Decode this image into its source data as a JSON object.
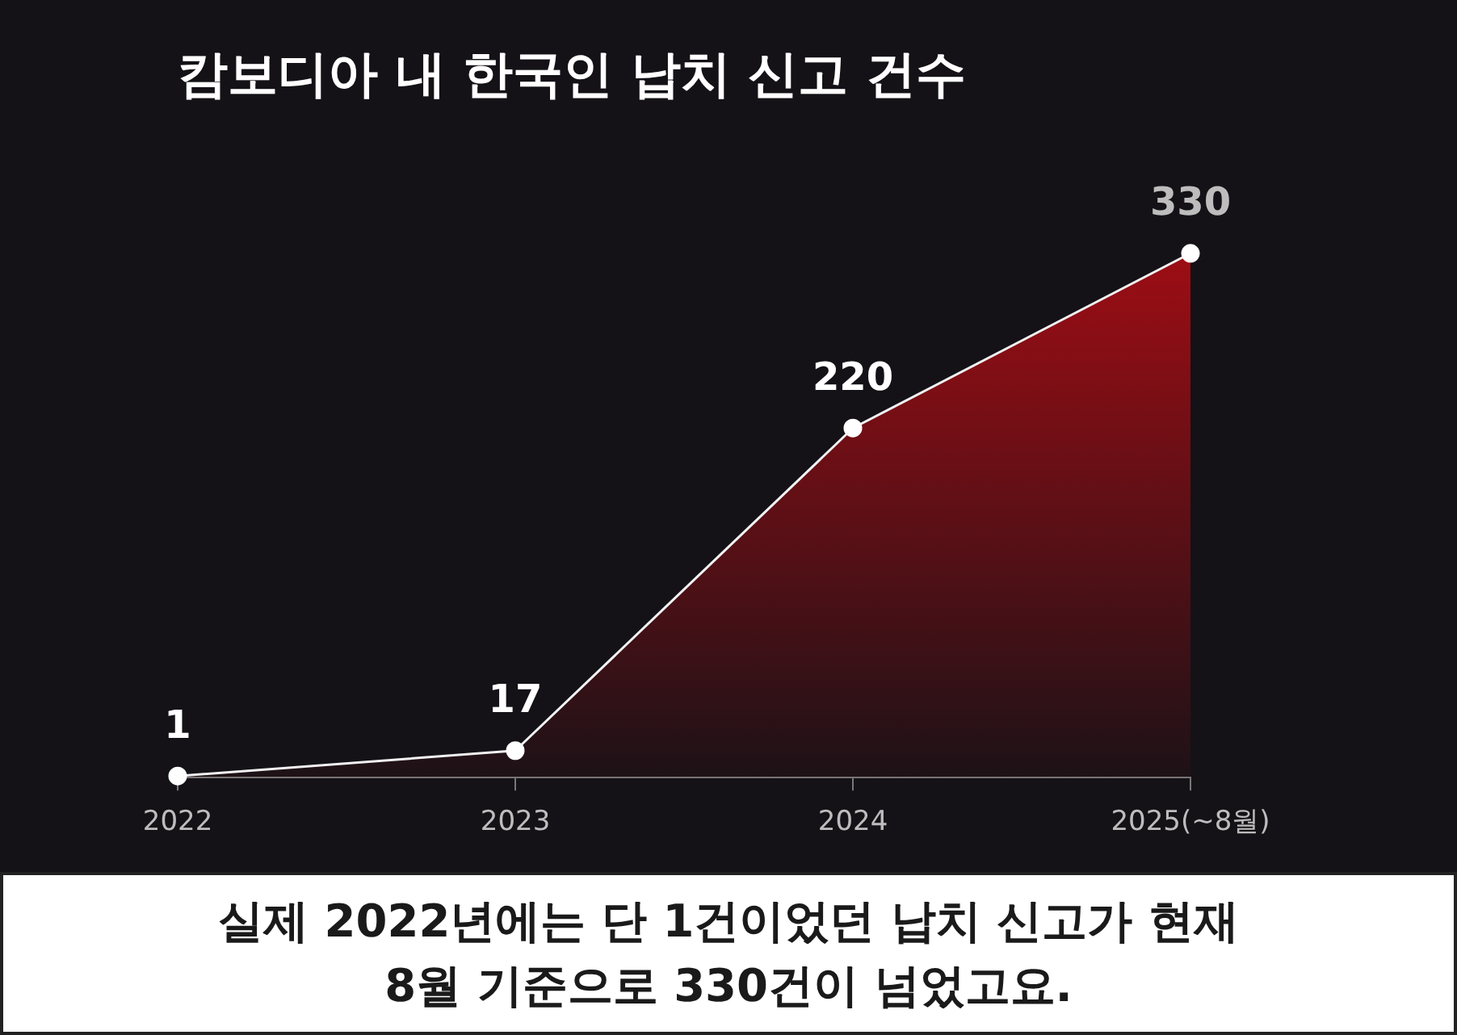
{
  "chart_data": {
    "type": "area",
    "title": "캄보디아 내 한국인 납치 신고 건수",
    "categories": [
      "2022",
      "2023",
      "2024",
      "2025(~8월)"
    ],
    "series": [
      {
        "color": "#a50d14",
        "values": [
          1,
          17,
          220,
          330
        ]
      }
    ],
    "data_labels": true,
    "grid": false,
    "legend": false,
    "marker": "circle",
    "line_style": "solid",
    "annotations": [
      "실제 2022년에는 단 1건이었던 납치 신고가 현재 8월 기준으로 330건이 넘었고요."
    ]
  }
}
